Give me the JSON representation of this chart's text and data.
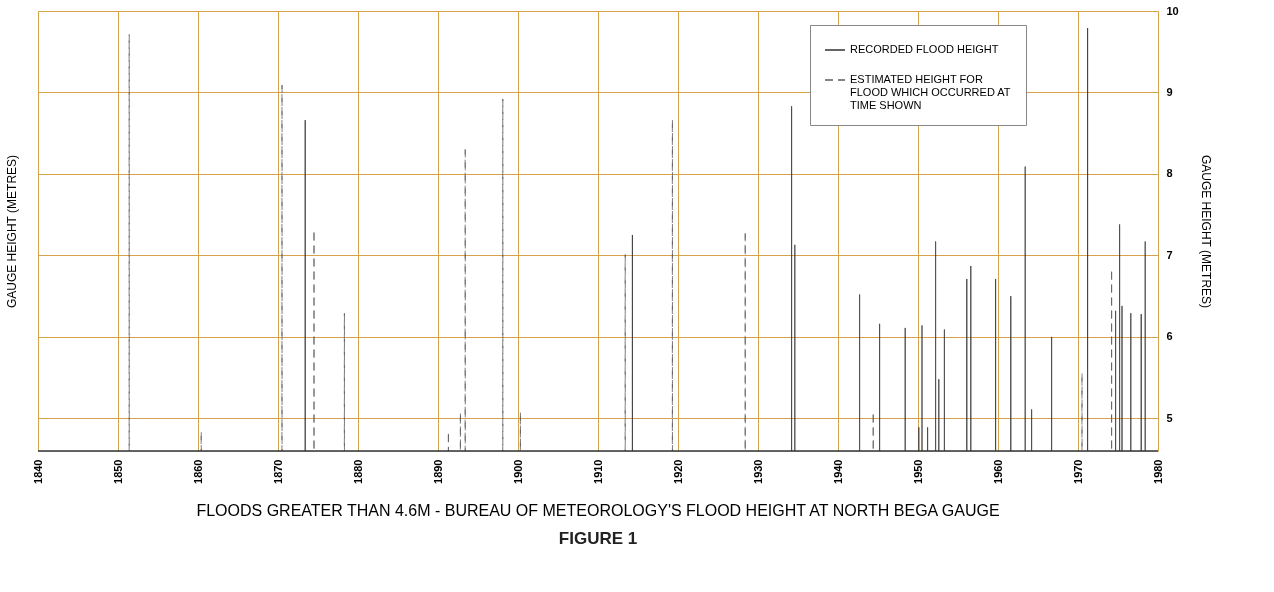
{
  "chart_data": {
    "type": "bar",
    "title": "FLOODS GREATER THAN 4.6M - BUREAU OF METEOROLOGY'S FLOOD HEIGHT AT NORTH BEGA GAUGE",
    "subtitle": "FIGURE 1",
    "ylabel": "GAUGE HEIGHT (METRES)",
    "xlim": [
      1840,
      1980
    ],
    "xticks": [
      1840,
      1850,
      1860,
      1870,
      1880,
      1890,
      1900,
      1910,
      1920,
      1930,
      1940,
      1950,
      1960,
      1970,
      1980
    ],
    "ylim": [
      4.6,
      10
    ],
    "yticks": [
      5,
      6,
      7,
      8,
      9,
      10
    ],
    "grid": true,
    "legend": "top right",
    "series": [
      {
        "name": "RECORDED FLOOD HEIGHT",
        "color": "#333333",
        "line_style": "solid",
        "x": [
          1873.4,
          1914.3,
          1934.2,
          1934.6,
          1942.7,
          1945.2,
          1948.4,
          1950.1,
          1950.5,
          1951.2,
          1952.2,
          1952.6,
          1953.3,
          1956.1,
          1956.6,
          1959.7,
          1961.6,
          1963.4,
          1964.2,
          1966.7,
          1971.2,
          1974.7,
          1975.2,
          1975.5,
          1976.6,
          1977.9,
          1978.4
        ],
        "values": [
          8.66,
          7.25,
          8.83,
          7.13,
          6.52,
          6.16,
          6.11,
          4.89,
          6.14,
          4.89,
          7.17,
          5.48,
          6.09,
          6.71,
          6.87,
          6.71,
          6.5,
          8.09,
          5.11,
          6.0,
          9.79,
          6.32,
          7.38,
          6.38,
          6.29,
          6.28,
          7.17
        ]
      },
      {
        "name": "ESTIMATED HEIGHT FOR FLOOD WHICH OCCURRED AT TIME SHOWN",
        "color": "#5c5c5c",
        "line_style": "dashed",
        "x": [
          1851.4,
          1860.4,
          1870.5,
          1874.5,
          1878.3,
          1891.3,
          1892.8,
          1893.4,
          1898.1,
          1900.3,
          1913.4,
          1919.3,
          1928.4,
          1944.4,
          1970.5,
          1974.2
        ],
        "values": [
          9.71,
          4.83,
          9.09,
          7.28,
          6.29,
          4.81,
          5.06,
          8.3,
          8.92,
          5.07,
          7.01,
          8.66,
          7.27,
          5.05,
          5.55,
          6.8
        ]
      }
    ]
  }
}
